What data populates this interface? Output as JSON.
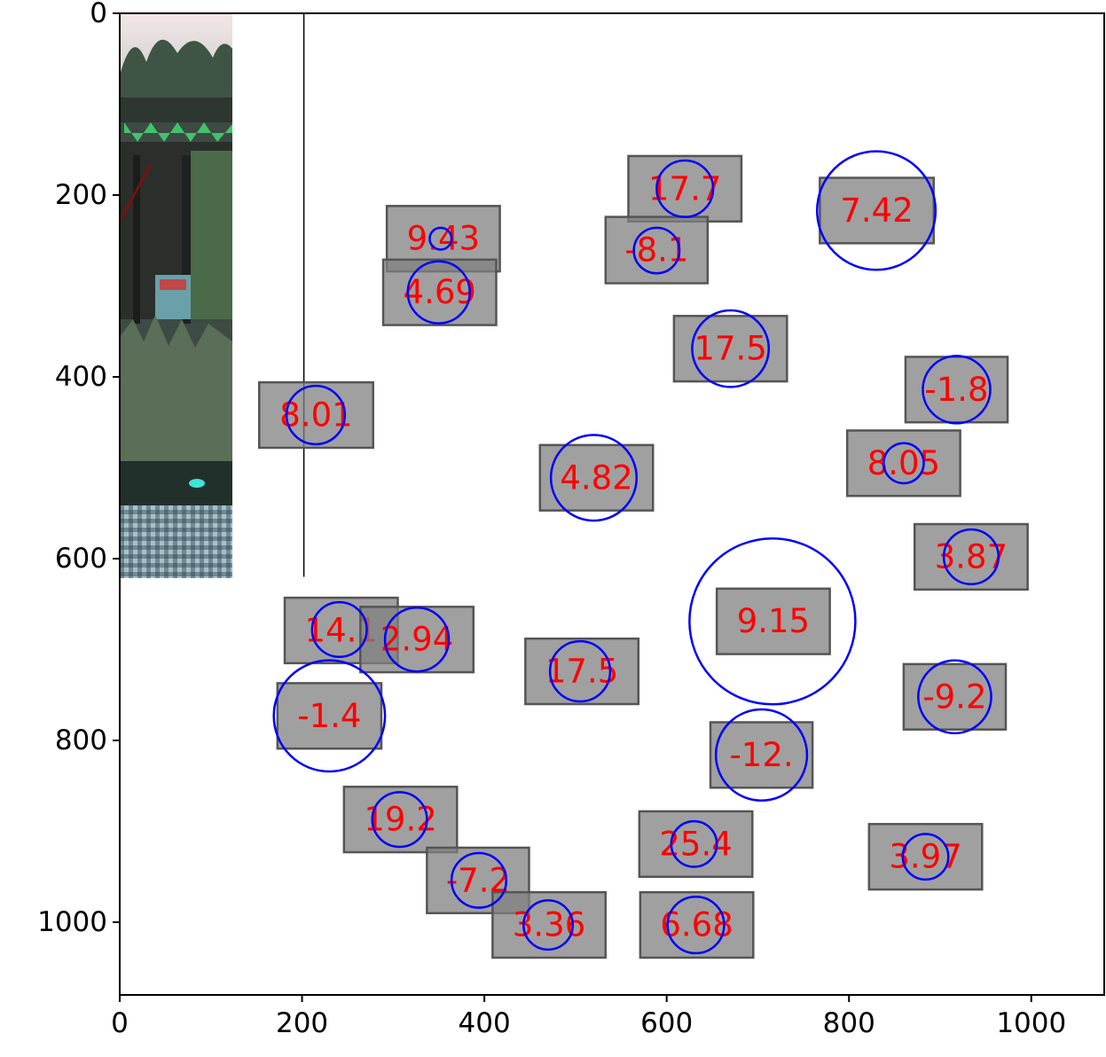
{
  "chart_data": {
    "type": "scatter",
    "title": "",
    "xlabel": "",
    "ylabel": "",
    "xlim": [
      0,
      1080
    ],
    "ylim": [
      1080,
      0
    ],
    "y_inverted": true,
    "grid": false,
    "legend": "none",
    "xticks": [
      0,
      200,
      400,
      600,
      800,
      1000
    ],
    "yticks": [
      0,
      200,
      400,
      600,
      800,
      1000
    ],
    "xtick_labels": [
      "0",
      "200",
      "400",
      "600",
      "800",
      "1000"
    ],
    "ytick_labels": [
      "0",
      "200",
      "400",
      "600",
      "800",
      "1000"
    ],
    "colors": {
      "box_fill": "#808080",
      "box_edge": "#555555",
      "label": "#ff0000",
      "circle": "#0000ff"
    },
    "background_image": {
      "description": "photo",
      "x": [
        0,
        124
      ],
      "y": [
        0,
        620
      ]
    },
    "guide_lines": [
      {
        "x": [
          202,
          202
        ],
        "y": [
          0,
          620
        ]
      }
    ],
    "boxes": [
      {
        "label": "17.7",
        "x0": 558,
        "x1": 682,
        "y0": 157,
        "y1": 229
      },
      {
        "label": "7.42",
        "x0": 768,
        "x1": 893,
        "y0": 181,
        "y1": 253
      },
      {
        "label": "9.43",
        "x0": 293,
        "x1": 417,
        "y0": 212,
        "y1": 284
      },
      {
        "label": "-8.1",
        "x0": 533,
        "x1": 645,
        "y0": 224,
        "y1": 297
      },
      {
        "label": "4.69",
        "x0": 289,
        "x1": 413,
        "y0": 271,
        "y1": 343
      },
      {
        "label": "17.5",
        "x0": 608,
        "x1": 732,
        "y0": 333,
        "y1": 405
      },
      {
        "label": "-1.8",
        "x0": 862,
        "x1": 974,
        "y0": 378,
        "y1": 450
      },
      {
        "label": "8.01",
        "x0": 153,
        "x1": 278,
        "y0": 406,
        "y1": 478
      },
      {
        "label": "8.05",
        "x0": 798,
        "x1": 922,
        "y0": 459,
        "y1": 531
      },
      {
        "label": "4.82",
        "x0": 461,
        "x1": 585,
        "y0": 475,
        "y1": 547
      },
      {
        "label": "3.87",
        "x0": 872,
        "x1": 996,
        "y0": 562,
        "y1": 634
      },
      {
        "label": "9.15",
        "x0": 655,
        "x1": 779,
        "y0": 633,
        "y1": 705
      },
      {
        "label": "14.1",
        "x0": 181,
        "x1": 305,
        "y0": 643,
        "y1": 715
      },
      {
        "label": "2.94",
        "x0": 264,
        "x1": 388,
        "y0": 653,
        "y1": 725
      },
      {
        "label": "17.5",
        "x0": 445,
        "x1": 569,
        "y0": 688,
        "y1": 760
      },
      {
        "label": "-9.2",
        "x0": 860,
        "x1": 972,
        "y0": 716,
        "y1": 788
      },
      {
        "label": "-1.4",
        "x0": 173,
        "x1": 287,
        "y0": 737,
        "y1": 809
      },
      {
        "label": "-12.",
        "x0": 648,
        "x1": 760,
        "y0": 780,
        "y1": 852
      },
      {
        "label": "19.2",
        "x0": 246,
        "x1": 370,
        "y0": 851,
        "y1": 923
      },
      {
        "label": "25.4",
        "x0": 570,
        "x1": 694,
        "y0": 878,
        "y1": 950
      },
      {
        "label": "3.97",
        "x0": 822,
        "x1": 946,
        "y0": 892,
        "y1": 964
      },
      {
        "label": "-7.2",
        "x0": 337,
        "x1": 449,
        "y0": 918,
        "y1": 990
      },
      {
        "label": "3.36",
        "x0": 409,
        "x1": 533,
        "y0": 967,
        "y1": 1039
      },
      {
        "label": "6.68",
        "x0": 571,
        "x1": 695,
        "y0": 967,
        "y1": 1039
      }
    ],
    "circles": [
      {
        "cx": 620,
        "cy": 193,
        "r": 31
      },
      {
        "cx": 830,
        "cy": 217,
        "r": 65
      },
      {
        "cx": 352,
        "cy": 248,
        "r": 12
      },
      {
        "cx": 589,
        "cy": 261,
        "r": 25
      },
      {
        "cx": 350,
        "cy": 307,
        "r": 34
      },
      {
        "cx": 670,
        "cy": 369,
        "r": 42
      },
      {
        "cx": 918,
        "cy": 414,
        "r": 37
      },
      {
        "cx": 215,
        "cy": 442,
        "r": 32
      },
      {
        "cx": 860,
        "cy": 495,
        "r": 22
      },
      {
        "cx": 520,
        "cy": 511,
        "r": 47
      },
      {
        "cx": 934,
        "cy": 598,
        "r": 30
      },
      {
        "cx": 716,
        "cy": 669,
        "r": 91
      },
      {
        "cx": 241,
        "cy": 678,
        "r": 30
      },
      {
        "cx": 326,
        "cy": 689,
        "r": 35
      },
      {
        "cx": 505,
        "cy": 724,
        "r": 33
      },
      {
        "cx": 916,
        "cy": 752,
        "r": 40
      },
      {
        "cx": 230,
        "cy": 773,
        "r": 61
      },
      {
        "cx": 704,
        "cy": 816,
        "r": 50
      },
      {
        "cx": 307,
        "cy": 887,
        "r": 30
      },
      {
        "cx": 630,
        "cy": 914,
        "r": 25
      },
      {
        "cx": 884,
        "cy": 928,
        "r": 25
      },
      {
        "cx": 394,
        "cy": 954,
        "r": 30
      },
      {
        "cx": 470,
        "cy": 1003,
        "r": 27
      },
      {
        "cx": 632,
        "cy": 1003,
        "r": 31
      }
    ]
  }
}
